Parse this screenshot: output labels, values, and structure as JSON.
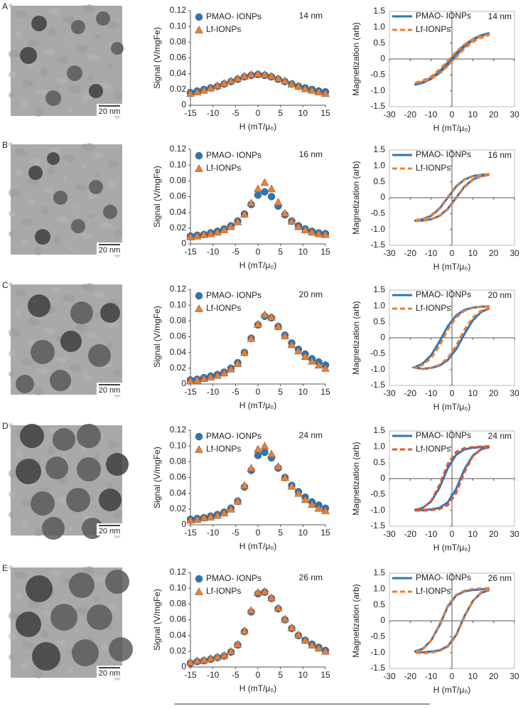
{
  "panels": [
    {
      "label": "A",
      "scale_bar": "20 nm"
    },
    {
      "label": "B",
      "scale_bar": "20 nm"
    },
    {
      "label": "C",
      "scale_bar": "20 nm"
    },
    {
      "label": "D",
      "scale_bar": "20 nm"
    },
    {
      "label": "E",
      "scale_bar": "20 nm"
    }
  ],
  "chart_data": [
    {
      "type": "scatter",
      "ylabel": "Signal (V/mgFe)",
      "xlabel": "H (mT/μ₀)",
      "annotation": "14 nm",
      "legend": "upper left",
      "x": [
        -15,
        -13.5,
        -12,
        -10.5,
        -9,
        -7.5,
        -6,
        -4.5,
        -3,
        -1.5,
        0,
        1.5,
        3,
        4.5,
        6,
        7.5,
        9,
        10.5,
        12,
        13.5,
        15
      ],
      "xlim": [
        -15,
        15
      ],
      "xticks": [
        -15,
        -10,
        -5,
        0,
        5,
        10,
        15
      ],
      "ylim": [
        0,
        0.12
      ],
      "yticks": [
        0,
        0.02,
        0.04,
        0.06,
        0.08,
        {
          "value": 0.1,
          "label": "0.10"
        },
        0.12
      ],
      "series": [
        {
          "name": "PMAO- IONPs",
          "color": "#2e75b6",
          "marker": "circle",
          "values": [
            0.016,
            0.018,
            0.02,
            0.022,
            0.024,
            0.027,
            0.03,
            0.033,
            0.036,
            0.038,
            0.039,
            0.038,
            0.036,
            0.033,
            0.03,
            0.027,
            0.024,
            0.022,
            0.02,
            0.018,
            0.017
          ]
        },
        {
          "name": "Lf-IONPs",
          "color": "#ed7d31",
          "marker": "triangle",
          "values": [
            0.015,
            0.017,
            0.019,
            0.022,
            0.025,
            0.028,
            0.031,
            0.034,
            0.037,
            0.039,
            0.04,
            0.039,
            0.037,
            0.034,
            0.031,
            0.027,
            0.024,
            0.021,
            0.019,
            0.017,
            0.015
          ]
        }
      ]
    },
    {
      "type": "line",
      "ylabel": "Magnetization (arb)",
      "xlabel": "H (mT/μ₀)",
      "annotation": "14 nm",
      "legend": "upper left",
      "x": [
        18,
        14,
        10,
        6,
        2,
        -2,
        -6,
        -10,
        -14,
        -18,
        -14,
        -10,
        -6,
        -2,
        2,
        6,
        10,
        14,
        18
      ],
      "xlim": [
        -30,
        30
      ],
      "xticks": [
        -30,
        -20,
        -10,
        0,
        10,
        20,
        30
      ],
      "ylim": [
        -1.5,
        1.5
      ],
      "yticks": [
        -1.5,
        {
          "value": -1,
          "label": "-1.0"
        },
        -0.5,
        0,
        0.5,
        {
          "value": 1,
          "label": "1.0"
        },
        1.5
      ],
      "series": [
        {
          "name": "PMAO- IONPs",
          "color": "#2e75b6",
          "dashed": false,
          "values": [
            0.82,
            0.75,
            0.63,
            0.44,
            0.19,
            -0.11,
            -0.39,
            -0.59,
            -0.73,
            -0.81,
            -0.75,
            -0.63,
            -0.44,
            -0.19,
            0.11,
            0.39,
            0.59,
            0.73,
            0.81
          ]
        },
        {
          "name": "Lf-IONPs",
          "color": "#ed7d31",
          "dashed": true,
          "values": [
            0.78,
            0.72,
            0.62,
            0.46,
            0.23,
            -0.06,
            -0.33,
            -0.55,
            -0.68,
            -0.76,
            -0.71,
            -0.62,
            -0.46,
            -0.22,
            0.06,
            0.33,
            0.54,
            0.67,
            0.76
          ]
        }
      ]
    },
    {
      "type": "scatter",
      "ylabel": "Signal (V/mgFe)",
      "xlabel": "H (mT/μ₀)",
      "annotation": "16 nm",
      "legend": "upper left",
      "x": [
        -15,
        -13.5,
        -12,
        -10.5,
        -9,
        -7.5,
        -6,
        -4.5,
        -3,
        -1.5,
        0,
        1.5,
        3,
        4.5,
        6,
        7.5,
        9,
        10.5,
        12,
        13.5,
        15
      ],
      "xlim": [
        -15,
        15
      ],
      "xticks": [
        -15,
        -10,
        -5,
        0,
        5,
        10,
        15
      ],
      "ylim": [
        0,
        0.12
      ],
      "yticks": [
        0,
        0.02,
        0.04,
        0.06,
        0.08,
        {
          "value": 0.1,
          "label": "0.10"
        },
        0.12
      ],
      "series": [
        {
          "name": "PMAO- IONPs",
          "color": "#2e75b6",
          "marker": "circle",
          "values": [
            0.01,
            0.011,
            0.012,
            0.014,
            0.016,
            0.019,
            0.023,
            0.029,
            0.038,
            0.05,
            0.062,
            0.066,
            0.06,
            0.048,
            0.037,
            0.029,
            0.023,
            0.019,
            0.016,
            0.014,
            0.013
          ]
        },
        {
          "name": "Lf-IONPs",
          "color": "#ed7d31",
          "marker": "triangle",
          "values": [
            0.009,
            0.01,
            0.012,
            0.013,
            0.015,
            0.018,
            0.022,
            0.028,
            0.038,
            0.052,
            0.07,
            0.078,
            0.07,
            0.053,
            0.039,
            0.029,
            0.022,
            0.018,
            0.015,
            0.013,
            0.012
          ]
        }
      ]
    },
    {
      "type": "line",
      "ylabel": "Magnetization (arb)",
      "xlabel": "H (mT/μ₀)",
      "annotation": "16 nm",
      "legend": "upper left",
      "x": [
        18,
        14,
        10,
        6,
        2,
        -2,
        -6,
        -10,
        -14,
        -18,
        -14,
        -10,
        -6,
        -2,
        2,
        6,
        10,
        14,
        18
      ],
      "xlim": [
        -30,
        30
      ],
      "xticks": [
        -30,
        -20,
        -10,
        0,
        10,
        20,
        30
      ],
      "ylim": [
        -1.5,
        1.5
      ],
      "yticks": [
        -1.5,
        {
          "value": -1,
          "label": "-1.0"
        },
        -0.5,
        0,
        0.5,
        {
          "value": 1,
          "label": "1.0"
        },
        1.5
      ],
      "series": [
        {
          "name": "PMAO- IONPs",
          "color": "#2e75b6",
          "dashed": false,
          "values": [
            0.74,
            0.72,
            0.68,
            0.57,
            0.35,
            0,
            -0.35,
            -0.57,
            -0.68,
            -0.72,
            -0.72,
            -0.68,
            -0.57,
            -0.35,
            0,
            0.35,
            0.57,
            0.68,
            0.72
          ]
        },
        {
          "name": "Lf-IONPs",
          "color": "#ed7d31",
          "dashed": true,
          "values": [
            0.73,
            0.71,
            0.67,
            0.58,
            0.37,
            0.02,
            -0.33,
            -0.55,
            -0.67,
            -0.71,
            -0.71,
            -0.67,
            -0.58,
            -0.37,
            -0.02,
            0.33,
            0.55,
            0.67,
            0.72
          ]
        }
      ]
    },
    {
      "type": "scatter",
      "ylabel": "Signal (V/mgFe)",
      "xlabel": "H (mT/μ₀)",
      "annotation": "20 nm",
      "legend": "upper left",
      "x": [
        -15,
        -13.5,
        -12,
        -10.5,
        -9,
        -7.5,
        -6,
        -4.5,
        -3,
        -1.5,
        0,
        1.5,
        3,
        4.5,
        6,
        7.5,
        9,
        10.5,
        12,
        13.5,
        15
      ],
      "xlim": [
        -15,
        15
      ],
      "xticks": [
        -15,
        -10,
        -5,
        0,
        5,
        10,
        15
      ],
      "ylim": [
        0,
        0.12
      ],
      "yticks": [
        0,
        0.02,
        0.04,
        0.06,
        0.08,
        {
          "value": 0.1,
          "label": "0.10"
        },
        0.12
      ],
      "series": [
        {
          "name": "PMAO- IONPs",
          "color": "#2e75b6",
          "marker": "circle",
          "values": [
            0.005,
            0.006,
            0.008,
            0.01,
            0.012,
            0.015,
            0.02,
            0.027,
            0.04,
            0.058,
            0.075,
            0.086,
            0.084,
            0.073,
            0.062,
            0.052,
            0.044,
            0.038,
            0.032,
            0.028,
            0.024
          ]
        },
        {
          "name": "Lf-IONPs",
          "color": "#ed7d31",
          "marker": "triangle",
          "values": [
            0.004,
            0.005,
            0.007,
            0.009,
            0.011,
            0.014,
            0.019,
            0.026,
            0.04,
            0.058,
            0.076,
            0.088,
            0.085,
            0.073,
            0.061,
            0.05,
            0.042,
            0.035,
            0.029,
            0.024,
            0.02
          ]
        }
      ]
    },
    {
      "type": "line",
      "ylabel": "Magnetization (arb)",
      "xlabel": "H (mT/μ₀)",
      "annotation": "20 nm",
      "legend": "upper left",
      "x": [
        18,
        14,
        10,
        6,
        2,
        -2,
        -6,
        -10,
        -14,
        -18,
        -14,
        -10,
        -6,
        -2,
        2,
        6,
        10,
        14,
        18
      ],
      "xlim": [
        -30,
        30
      ],
      "xticks": [
        -30,
        -20,
        -10,
        0,
        10,
        20,
        30
      ],
      "ylim": [
        -1.5,
        1.5
      ],
      "yticks": [
        -1.5,
        {
          "value": -1,
          "label": "-1.0"
        },
        -0.5,
        0,
        0.5,
        {
          "value": 1,
          "label": "1.0"
        },
        1.5
      ],
      "series": [
        {
          "name": "PMAO- IONPs",
          "color": "#2e75b6",
          "dashed": false,
          "values": [
            0.99,
            0.98,
            0.95,
            0.88,
            0.7,
            0.36,
            -0.12,
            -0.55,
            -0.81,
            -0.93,
            -0.98,
            -0.95,
            -0.88,
            -0.7,
            -0.36,
            0.12,
            0.55,
            0.81,
            0.93
          ]
        },
        {
          "name": "Lf-IONPs",
          "color": "#ed7d31",
          "dashed": true,
          "values": [
            0.99,
            0.98,
            0.94,
            0.85,
            0.64,
            0.25,
            -0.25,
            -0.64,
            -0.85,
            -0.94,
            -0.98,
            -0.94,
            -0.85,
            -0.64,
            -0.25,
            0.25,
            0.64,
            0.85,
            0.94
          ]
        }
      ]
    },
    {
      "type": "scatter",
      "ylabel": "Signal (V/mgFe)",
      "xlabel": "H (mT/μ₀)",
      "annotation": "24 nm",
      "legend": "upper left",
      "x": [
        -15,
        -13.5,
        -12,
        -10.5,
        -9,
        -7.5,
        -6,
        -4.5,
        -3,
        -1.5,
        0,
        1.5,
        3,
        4.5,
        6,
        7.5,
        9,
        10.5,
        12,
        13.5,
        15
      ],
      "xlim": [
        -15,
        15
      ],
      "xticks": [
        -15,
        -10,
        -5,
        0,
        5,
        10,
        15
      ],
      "ylim": [
        0,
        0.12
      ],
      "yticks": [
        0,
        0.02,
        0.04,
        0.06,
        0.08,
        {
          "value": 0.1,
          "label": "0.10"
        },
        0.12
      ],
      "series": [
        {
          "name": "PMAO- IONPs",
          "color": "#2e75b6",
          "marker": "circle",
          "values": [
            0.007,
            0.008,
            0.009,
            0.011,
            0.013,
            0.016,
            0.021,
            0.03,
            0.048,
            0.069,
            0.088,
            0.092,
            0.085,
            0.072,
            0.06,
            0.05,
            0.042,
            0.035,
            0.029,
            0.025,
            0.021
          ]
        },
        {
          "name": "Lf-IONPs",
          "color": "#ed7d31",
          "marker": "triangle",
          "values": [
            0.006,
            0.007,
            0.009,
            0.01,
            0.012,
            0.015,
            0.02,
            0.03,
            0.05,
            0.072,
            0.096,
            0.1,
            0.09,
            0.074,
            0.06,
            0.049,
            0.04,
            0.032,
            0.026,
            0.021,
            0.018
          ]
        }
      ]
    },
    {
      "type": "line",
      "ylabel": "Magnetization (arb)",
      "xlabel": "H (mT/μ₀)",
      "annotation": "24 nm",
      "legend": "upper left",
      "x": [
        18,
        14,
        10,
        6,
        2,
        -2,
        -6,
        -10,
        -14,
        -18,
        -14,
        -10,
        -6,
        -2,
        2,
        6,
        10,
        14,
        18
      ],
      "xlim": [
        -30,
        30
      ],
      "xticks": [
        -30,
        -20,
        -10,
        0,
        10,
        20,
        30
      ],
      "ylim": [
        -1.5,
        1.5
      ],
      "yticks": [
        -1.5,
        {
          "value": -1,
          "label": "-1.0"
        },
        -0.5,
        0,
        0.5,
        {
          "value": 1,
          "label": "1.0"
        },
        1.5
      ],
      "series": [
        {
          "name": "PMAO- IONPs",
          "color": "#2e75b6",
          "dashed": false,
          "values": [
            1.0,
            0.99,
            0.97,
            0.92,
            0.75,
            0.33,
            -0.29,
            -0.72,
            -0.92,
            -0.99,
            -0.99,
            -0.97,
            -0.92,
            -0.75,
            -0.33,
            0.29,
            0.72,
            0.92,
            0.99
          ]
        },
        {
          "name": "Lf-IONPs",
          "color": "#e8552a",
          "dashed": true,
          "values": [
            1.02,
            1.01,
            0.99,
            0.96,
            0.84,
            0.46,
            -0.2,
            -0.7,
            -0.93,
            -1.0,
            -1.01,
            -0.99,
            -0.96,
            -0.84,
            -0.46,
            0.2,
            0.7,
            0.93,
            1.0
          ]
        }
      ]
    },
    {
      "type": "scatter",
      "ylabel": "Signal (V/mgFe)",
      "xlabel": "H (mT/μ₀)",
      "annotation": "26 nm",
      "legend": "upper left",
      "x": [
        -15,
        -13.5,
        -12,
        -10.5,
        -9,
        -7.5,
        -6,
        -4.5,
        -3,
        -1.5,
        0,
        1.5,
        3,
        4.5,
        6,
        7.5,
        9,
        10.5,
        12,
        13.5,
        15
      ],
      "xlim": [
        -15,
        15
      ],
      "xticks": [
        -15,
        -10,
        -5,
        0,
        5,
        10,
        15
      ],
      "ylim": [
        0,
        0.12
      ],
      "yticks": [
        0,
        0.02,
        0.04,
        0.06,
        0.08,
        {
          "value": 0.1,
          "label": "0.10"
        },
        0.12
      ],
      "series": [
        {
          "name": "PMAO- IONPs",
          "color": "#2e75b6",
          "marker": "circle",
          "values": [
            0.005,
            0.007,
            0.008,
            0.01,
            0.012,
            0.014,
            0.019,
            0.028,
            0.045,
            0.07,
            0.093,
            0.095,
            0.087,
            0.074,
            0.06,
            0.049,
            0.04,
            0.034,
            0.029,
            0.025,
            0.021
          ]
        },
        {
          "name": "Lf-IONPs",
          "color": "#ed7d31",
          "marker": "triangle",
          "values": [
            0.006,
            0.008,
            0.009,
            0.011,
            0.013,
            0.015,
            0.02,
            0.029,
            0.046,
            0.072,
            0.095,
            0.096,
            0.088,
            0.075,
            0.061,
            0.05,
            0.041,
            0.034,
            0.028,
            0.024,
            0.02
          ]
        }
      ]
    },
    {
      "type": "line",
      "ylabel": "Magnetization (arb)",
      "xlabel": "H (mT/μ₀)",
      "annotation": "26 nm",
      "legend": "upper left",
      "x": [
        18,
        14,
        10,
        6,
        2,
        -2,
        -6,
        -10,
        -14,
        -18,
        -14,
        -10,
        -6,
        -2,
        2,
        6,
        10,
        14,
        18
      ],
      "xlim": [
        -30,
        30
      ],
      "xticks": [
        -30,
        -20,
        -10,
        0,
        10,
        20,
        30
      ],
      "ylim": [
        -1.5,
        1.5
      ],
      "yticks": [
        -1.5,
        {
          "value": -1,
          "label": "-1.0"
        },
        -0.5,
        0,
        0.5,
        {
          "value": 1,
          "label": "1.0"
        },
        1.5
      ],
      "series": [
        {
          "name": "PMAO- IONPs",
          "color": "#2e75b6",
          "dashed": false,
          "values": [
            1.0,
            0.99,
            0.97,
            0.93,
            0.8,
            0.45,
            -0.15,
            -0.62,
            -0.88,
            -0.97,
            -0.99,
            -0.97,
            -0.93,
            -0.8,
            -0.45,
            0.15,
            0.62,
            0.88,
            0.97
          ]
        },
        {
          "name": "Lf-IONPs",
          "color": "#ed7d31",
          "dashed": true,
          "values": [
            1.03,
            1.02,
            1.0,
            0.95,
            0.82,
            0.48,
            -0.12,
            -0.62,
            -0.9,
            -1.0,
            -1.02,
            -1.0,
            -0.95,
            -0.82,
            -0.48,
            0.12,
            0.62,
            0.9,
            1.0
          ]
        }
      ]
    }
  ]
}
